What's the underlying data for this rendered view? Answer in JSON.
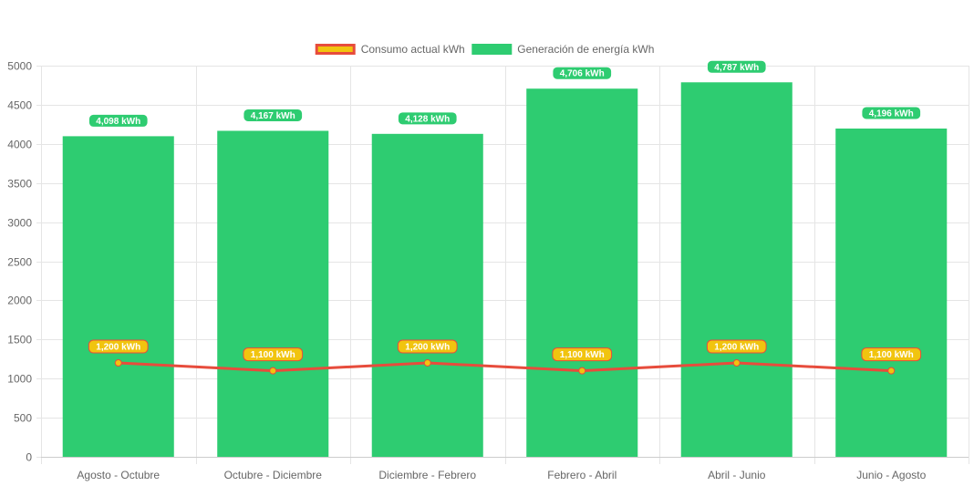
{
  "chart_data": {
    "type": "bar",
    "categories": [
      "Agosto - Octubre",
      "Octubre - Diciembre",
      "Diciembre - Febrero",
      "Febrero - Abril",
      "Abril - Junio",
      "Junio - Agosto"
    ],
    "series": [
      {
        "name": "Generación de energía kWh",
        "type": "bar",
        "values": [
          4098,
          4167,
          4128,
          4706,
          4787,
          4196
        ],
        "labels": [
          "4,098 kWh",
          "4,167 kWh",
          "4,128 kWh",
          "4,706 kWh",
          "4,787 kWh",
          "4,196 kWh"
        ],
        "color": "#2ecc71"
      },
      {
        "name": "Consumo actual kWh",
        "type": "line",
        "values": [
          1200,
          1100,
          1200,
          1100,
          1200,
          1100
        ],
        "labels": [
          "1,200 kWh",
          "1,100 kWh",
          "1,200 kWh",
          "1,100 kWh",
          "1,200 kWh",
          "1,100 kWh"
        ],
        "color": "#e74c3c",
        "point_color": "#f1c40f"
      }
    ],
    "ylim": [
      0,
      5000
    ],
    "yticks": [
      "0",
      "500",
      "1000",
      "1500",
      "2000",
      "2500",
      "3000",
      "3500",
      "4000",
      "4500",
      "5000"
    ],
    "grid": true,
    "legend_position": "top"
  },
  "legend": {
    "items": [
      {
        "label": "Consumo actual kWh",
        "fill": "#f1c40f",
        "stroke": "#e74c3c"
      },
      {
        "label": "Generación de energía kWh",
        "fill": "#2ecc71",
        "stroke": "#2ecc71"
      }
    ]
  }
}
